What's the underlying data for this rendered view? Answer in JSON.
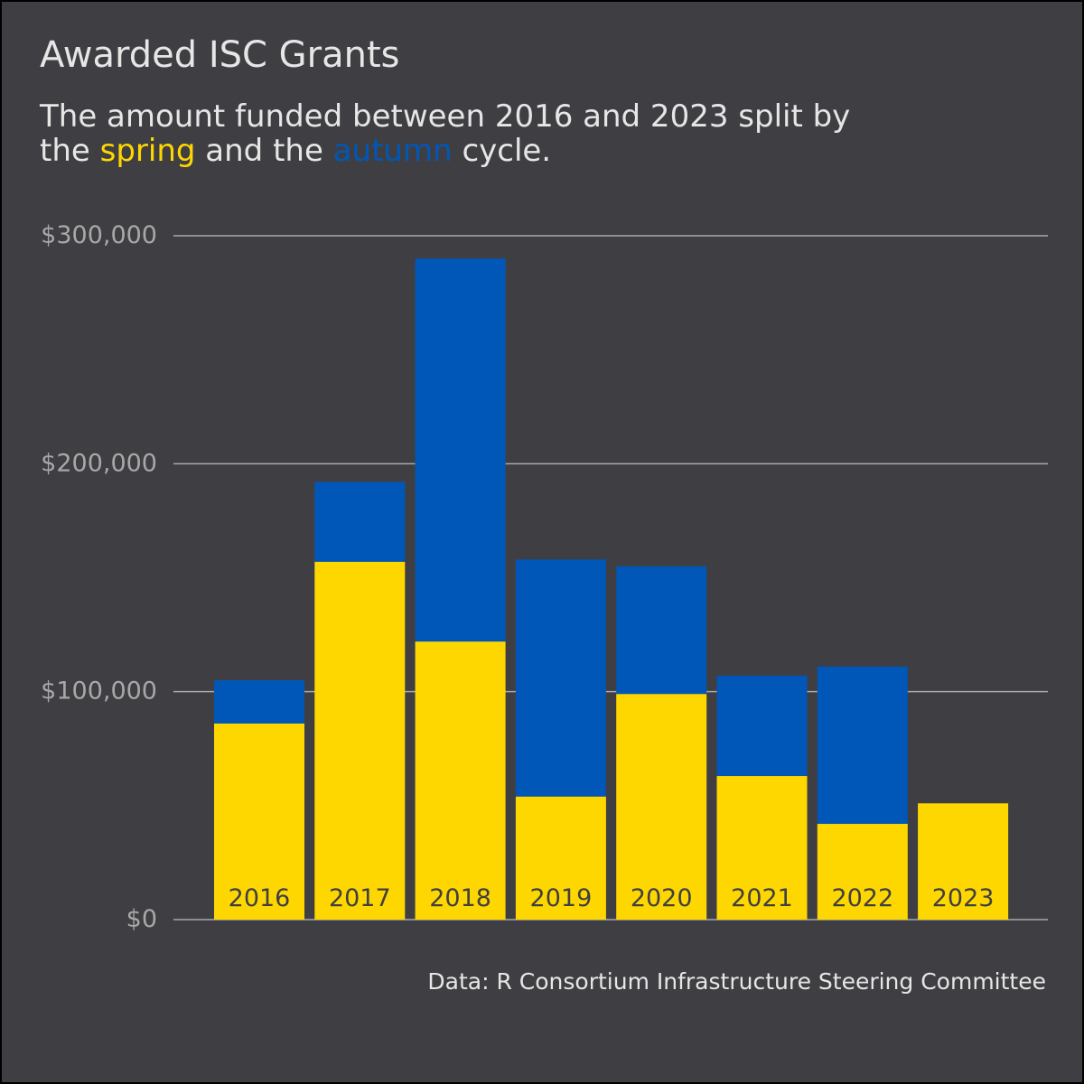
{
  "title": "Awarded ISC Grants",
  "subtitle": {
    "line1": "The amount funded between 2016 and 2023 split by",
    "line2_prefix": "the",
    "spring_word": "spring",
    "line2_middle": "and the",
    "autumn_word": "autumn",
    "line2_suffix": "cycle."
  },
  "caption": "Data: R Consortium Infrastructure Steering Committee",
  "colors": {
    "background": "#3f3f43",
    "spring": "#ffd700",
    "autumn": "#0057b7",
    "text": "#e6e6e6",
    "grid": "#a8a8a8",
    "bar_label": "#3f3f43"
  },
  "chart_data": {
    "type": "bar",
    "stacked": true,
    "categories": [
      "2016",
      "2017",
      "2018",
      "2019",
      "2020",
      "2021",
      "2022",
      "2023"
    ],
    "series": [
      {
        "name": "spring",
        "color": "#ffd700",
        "values": [
          86000,
          157000,
          122000,
          54000,
          99000,
          63000,
          42000,
          51000
        ]
      },
      {
        "name": "autumn",
        "color": "#0057b7",
        "values": [
          19000,
          35000,
          168000,
          104000,
          56000,
          44000,
          69000,
          0
        ]
      }
    ],
    "ylim": [
      0,
      300000
    ],
    "yticks": [
      0,
      100000,
      200000,
      300000
    ],
    "ytick_labels": [
      "$0",
      "$100,000",
      "$200,000",
      "$300,000"
    ],
    "grid": true,
    "category_labels_inside_bars": true
  }
}
